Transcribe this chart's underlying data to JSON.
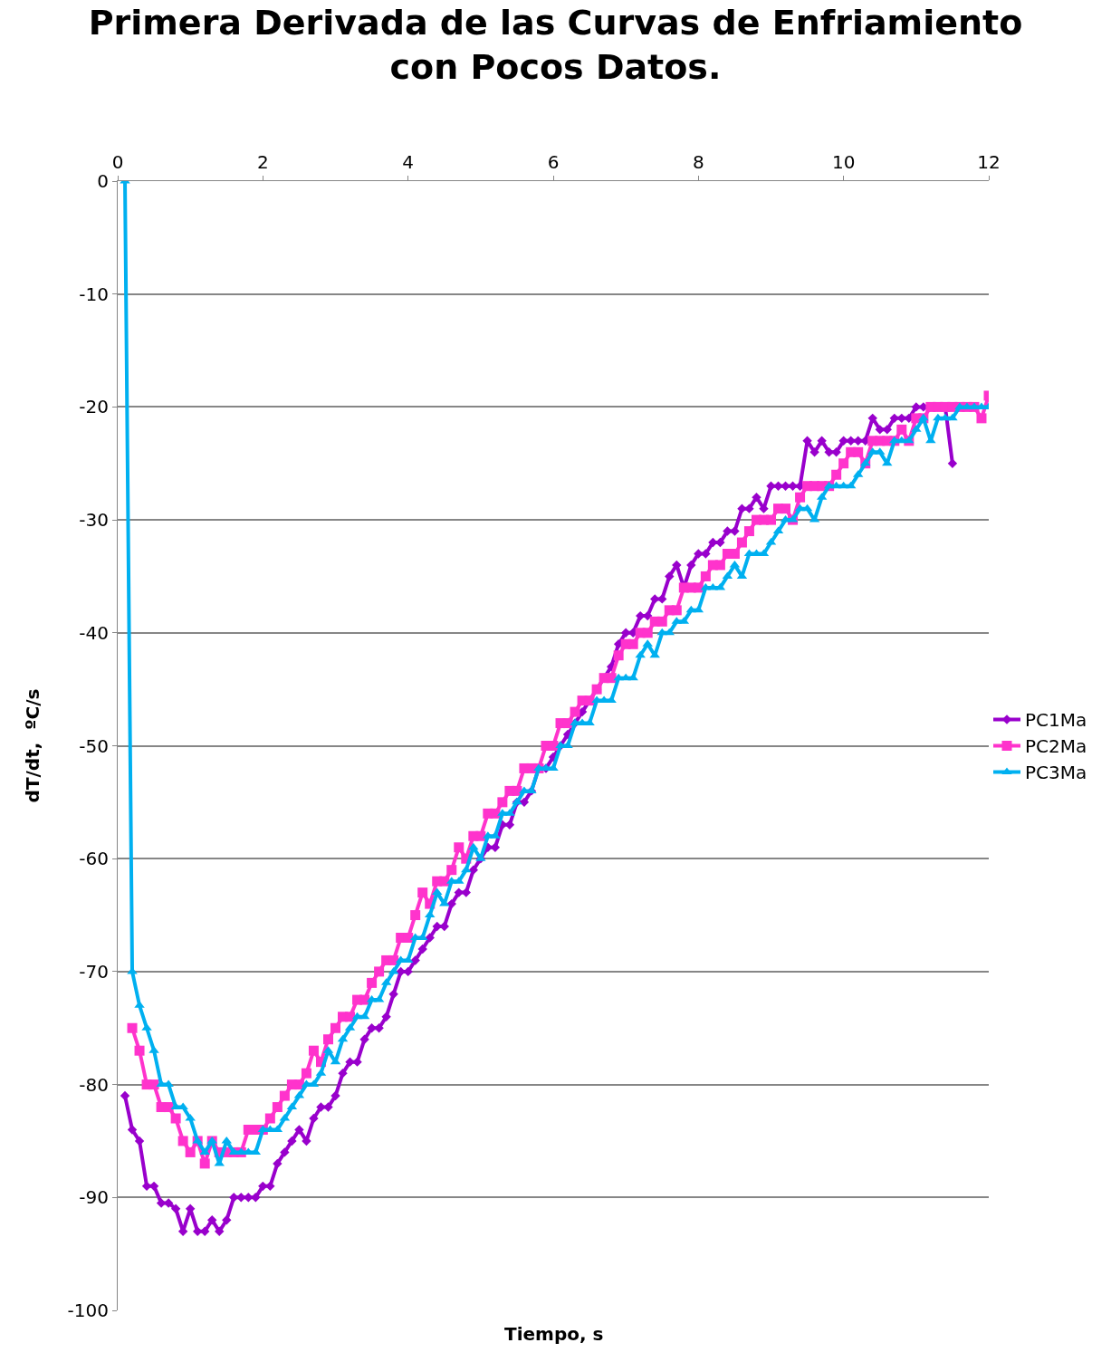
{
  "chart_data": {
    "type": "line",
    "title": "Primera Derivada de las Curvas de Enfriamiento con Pocos Datos.",
    "xlabel": "Tiempo, s",
    "ylabel": "dT/dt,  ºC/s",
    "xlim": [
      0,
      12
    ],
    "xticks": [
      0,
      2,
      4,
      6,
      8,
      10,
      12
    ],
    "ylim": [
      -100,
      0
    ],
    "yticks": [
      -100,
      -90,
      -80,
      -70,
      -60,
      -50,
      -40,
      -30,
      -20,
      -10,
      0
    ],
    "grid": "y",
    "legend": "right",
    "series": [
      {
        "name": "PC1Ma",
        "color": "#9900cc",
        "marker": "diamond",
        "x": [
          0.1,
          0.2,
          0.3,
          0.4,
          0.5,
          0.6,
          0.7,
          0.8,
          0.9,
          1.0,
          1.1,
          1.2,
          1.3,
          1.4,
          1.5,
          1.6,
          1.7,
          1.8,
          1.9,
          2.0,
          2.1,
          2.2,
          2.3,
          2.4,
          2.5,
          2.6,
          2.7,
          2.8,
          2.9,
          3.0,
          3.1,
          3.2,
          3.3,
          3.4,
          3.5,
          3.6,
          3.7,
          3.8,
          3.9,
          4.0,
          4.1,
          4.2,
          4.3,
          4.4,
          4.5,
          4.6,
          4.7,
          4.8,
          4.9,
          5.0,
          5.1,
          5.2,
          5.3,
          5.4,
          5.5,
          5.6,
          5.7,
          5.8,
          5.9,
          6.0,
          6.1,
          6.2,
          6.3,
          6.4,
          6.5,
          6.6,
          6.7,
          6.8,
          6.9,
          7.0,
          7.1,
          7.2,
          7.3,
          7.4,
          7.5,
          7.6,
          7.7,
          7.8,
          7.9,
          8.0,
          8.1,
          8.2,
          8.3,
          8.4,
          8.5,
          8.6,
          8.7,
          8.8,
          8.9,
          9.0,
          9.1,
          9.2,
          9.3,
          9.4,
          9.5,
          9.6,
          9.7,
          9.8,
          9.9,
          10.0,
          10.1,
          10.2,
          10.3,
          10.4,
          10.5,
          10.6,
          10.7,
          10.8,
          10.9,
          11.0,
          11.1,
          11.2,
          11.3,
          11.4,
          11.5
        ],
        "values": [
          -81,
          -84,
          -85,
          -89,
          -89,
          -90.5,
          -90.5,
          -91,
          -93,
          -91,
          -93,
          -93,
          -92,
          -93,
          -92,
          -90,
          -90,
          -90,
          -90,
          -89,
          -89,
          -87,
          -86,
          -85,
          -84,
          -85,
          -83,
          -82,
          -82,
          -81,
          -79,
          -78,
          -78,
          -76,
          -75,
          -75,
          -74,
          -72,
          -70,
          -70,
          -69,
          -68,
          -67,
          -66,
          -66,
          -64,
          -63,
          -63,
          -61,
          -60,
          -59,
          -59,
          -57,
          -57,
          -55,
          -55,
          -54,
          -52,
          -52,
          -51,
          -50,
          -49,
          -48,
          -47,
          -46,
          -45,
          -44,
          -43,
          -41,
          -40,
          -40,
          -38.5,
          -38.5,
          -37,
          -37,
          -35,
          -34,
          -36,
          -34,
          -33,
          -33,
          -32,
          -32,
          -31,
          -31,
          -29,
          -29,
          -28,
          -29,
          -27,
          -27,
          -27,
          -27,
          -27,
          -23,
          -24,
          -23,
          -24,
          -24,
          -23,
          -23,
          -23,
          -23,
          -21,
          -22,
          -22,
          -21,
          -21,
          -21,
          -20,
          -20,
          -20,
          -20,
          -20,
          -25
        ]
      },
      {
        "name": "PC2Ma",
        "color": "#ff33cc",
        "marker": "square",
        "x": [
          0.2,
          0.3,
          0.4,
          0.5,
          0.6,
          0.7,
          0.8,
          0.9,
          1.0,
          1.1,
          1.2,
          1.3,
          1.4,
          1.5,
          1.6,
          1.7,
          1.8,
          1.9,
          2.0,
          2.1,
          2.2,
          2.3,
          2.4,
          2.5,
          2.6,
          2.7,
          2.8,
          2.9,
          3.0,
          3.1,
          3.2,
          3.3,
          3.4,
          3.5,
          3.6,
          3.7,
          3.8,
          3.9,
          4.0,
          4.1,
          4.2,
          4.3,
          4.4,
          4.5,
          4.6,
          4.7,
          4.8,
          4.9,
          5.0,
          5.1,
          5.2,
          5.3,
          5.4,
          5.5,
          5.6,
          5.7,
          5.8,
          5.9,
          6.0,
          6.1,
          6.2,
          6.3,
          6.4,
          6.5,
          6.6,
          6.7,
          6.8,
          6.9,
          7.0,
          7.1,
          7.2,
          7.3,
          7.4,
          7.5,
          7.6,
          7.7,
          7.8,
          7.9,
          8.0,
          8.1,
          8.2,
          8.3,
          8.4,
          8.5,
          8.6,
          8.7,
          8.8,
          8.9,
          9.0,
          9.1,
          9.2,
          9.3,
          9.4,
          9.5,
          9.6,
          9.7,
          9.8,
          9.9,
          10.0,
          10.1,
          10.2,
          10.3,
          10.4,
          10.5,
          10.6,
          10.7,
          10.8,
          10.9,
          11.0,
          11.1,
          11.2,
          11.3,
          11.4,
          11.5,
          11.6,
          11.7,
          11.8,
          11.9,
          12.0
        ],
        "values": [
          -75,
          -77,
          -80,
          -80,
          -82,
          -82,
          -83,
          -85,
          -86,
          -85,
          -87,
          -85,
          -86,
          -86,
          -86,
          -86,
          -84,
          -84,
          -84,
          -83,
          -82,
          -81,
          -80,
          -80,
          -79,
          -77,
          -78,
          -76,
          -75,
          -74,
          -74,
          -72.5,
          -72.5,
          -71,
          -70,
          -69,
          -69,
          -67,
          -67,
          -65,
          -63,
          -64,
          -62,
          -62,
          -61,
          -59,
          -60,
          -58,
          -58,
          -56,
          -56,
          -55,
          -54,
          -54,
          -52,
          -52,
          -52,
          -50,
          -50,
          -48,
          -48,
          -47,
          -46,
          -46,
          -45,
          -44,
          -44,
          -42,
          -41,
          -41,
          -40,
          -40,
          -39,
          -39,
          -38,
          -38,
          -36,
          -36,
          -36,
          -35,
          -34,
          -34,
          -33,
          -33,
          -32,
          -31,
          -30,
          -30,
          -30,
          -29,
          -29,
          -30,
          -28,
          -27,
          -27,
          -27,
          -27,
          -26,
          -25,
          -24,
          -24,
          -25,
          -23,
          -23,
          -23,
          -23,
          -22,
          -23,
          -21,
          -21,
          -20,
          -20,
          -20,
          -20,
          -20,
          -20,
          -20,
          -21,
          -19
        ]
      },
      {
        "name": "PC3Ma",
        "color": "#00b0f0",
        "marker": "triangle",
        "x": [
          0.1,
          0.2,
          0.3,
          0.4,
          0.5,
          0.6,
          0.7,
          0.8,
          0.9,
          1.0,
          1.1,
          1.2,
          1.3,
          1.4,
          1.5,
          1.6,
          1.7,
          1.8,
          1.9,
          2.0,
          2.1,
          2.2,
          2.3,
          2.4,
          2.5,
          2.6,
          2.7,
          2.8,
          2.9,
          3.0,
          3.1,
          3.2,
          3.3,
          3.4,
          3.5,
          3.6,
          3.7,
          3.8,
          3.9,
          4.0,
          4.1,
          4.2,
          4.3,
          4.4,
          4.5,
          4.6,
          4.7,
          4.8,
          4.9,
          5.0,
          5.1,
          5.2,
          5.3,
          5.4,
          5.5,
          5.6,
          5.7,
          5.8,
          5.9,
          6.0,
          6.1,
          6.2,
          6.3,
          6.4,
          6.5,
          6.6,
          6.7,
          6.8,
          6.9,
          7.0,
          7.1,
          7.2,
          7.3,
          7.4,
          7.5,
          7.6,
          7.7,
          7.8,
          7.9,
          8.0,
          8.1,
          8.2,
          8.3,
          8.4,
          8.5,
          8.6,
          8.7,
          8.8,
          8.9,
          9.0,
          9.1,
          9.2,
          9.3,
          9.4,
          9.5,
          9.6,
          9.7,
          9.8,
          9.9,
          10.0,
          10.1,
          10.2,
          10.3,
          10.4,
          10.5,
          10.6,
          10.7,
          10.8,
          10.9,
          11.0,
          11.1,
          11.2,
          11.3,
          11.4,
          11.5,
          11.6,
          11.7,
          11.8,
          11.9,
          12.0
        ],
        "values": [
          0,
          -70,
          -73,
          -75,
          -77,
          -80,
          -80,
          -82,
          -82,
          -83,
          -85,
          -86,
          -85,
          -87,
          -85,
          -86,
          -86,
          -86,
          -86,
          -84,
          -84,
          -84,
          -83,
          -82,
          -81,
          -80,
          -80,
          -79,
          -77,
          -78,
          -76,
          -75,
          -74,
          -74,
          -72.5,
          -72.5,
          -71,
          -70,
          -69,
          -69,
          -67,
          -67,
          -65,
          -63,
          -64,
          -62,
          -62,
          -61,
          -59,
          -60,
          -58,
          -58,
          -56,
          -56,
          -55,
          -54,
          -54,
          -52,
          -52,
          -52,
          -50,
          -50,
          -48,
          -48,
          -48,
          -46,
          -46,
          -46,
          -44,
          -44,
          -44,
          -42,
          -41,
          -42,
          -40,
          -40,
          -39,
          -39,
          -38,
          -38,
          -36,
          -36,
          -36,
          -35,
          -34,
          -35,
          -33,
          -33,
          -33,
          -32,
          -31,
          -30,
          -30,
          -29,
          -29,
          -30,
          -28,
          -27,
          -27,
          -27,
          -27,
          -26,
          -25,
          -24,
          -24,
          -25,
          -23,
          -23,
          -23,
          -22,
          -21,
          -23,
          -21,
          -21,
          -21,
          -20,
          -20,
          -20,
          -20,
          -20
        ]
      }
    ]
  }
}
